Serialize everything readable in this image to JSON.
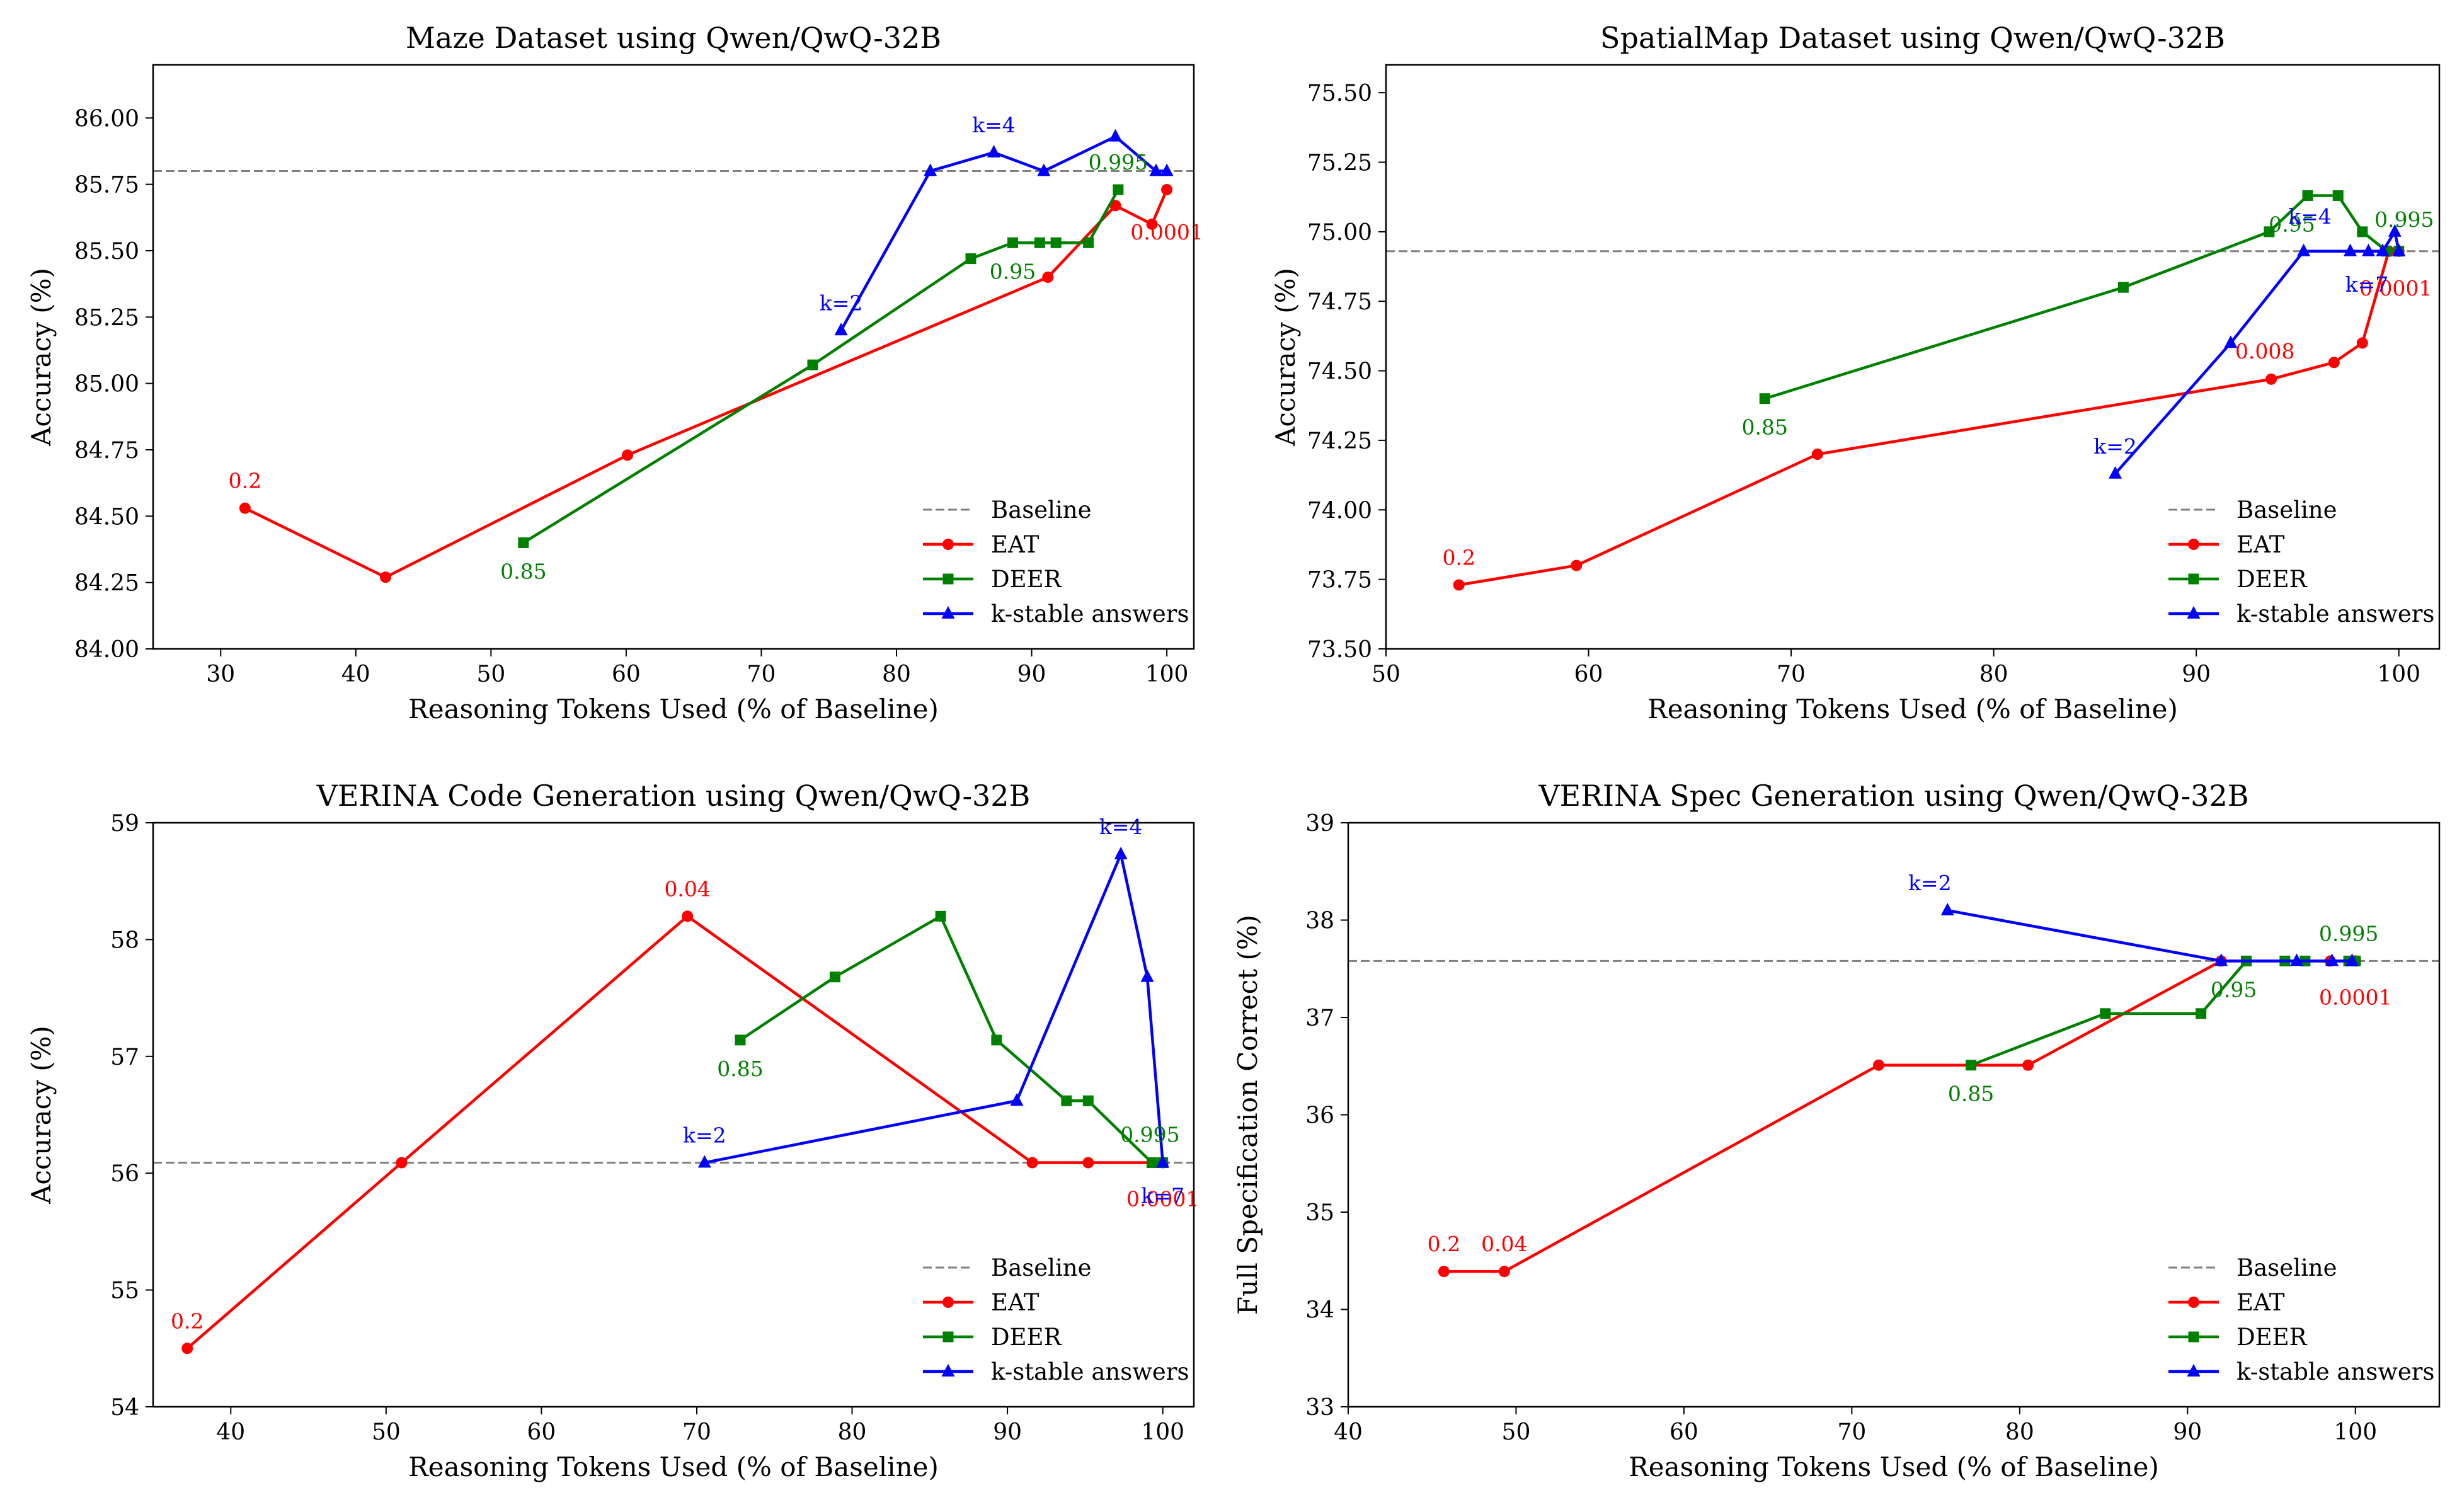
{
  "figure": {
    "model": "Qwen/QwQ-32B"
  },
  "colors": {
    "EAT": "#ff0000",
    "DEER": "#008000",
    "k-stable answers": "#0000ff",
    "Baseline": "#808080"
  },
  "chart_data": [
    {
      "type": "line",
      "title": "Maze Dataset using Qwen/QwQ-32B",
      "xlabel": "Reasoning Tokens Used (% of Baseline)",
      "ylabel": "Accuracy (%)",
      "xlim": [
        25,
        102
      ],
      "ylim": [
        84.0,
        86.2
      ],
      "xticks": [
        30,
        40,
        50,
        60,
        70,
        80,
        90,
        100
      ],
      "yticks": [
        84.0,
        84.25,
        84.5,
        84.75,
        85.0,
        85.25,
        85.5,
        85.75,
        86.0
      ],
      "ytick_decimals": 2,
      "baseline": 85.8,
      "legend_position": "bottom-right",
      "legend": [
        "Baseline",
        "EAT",
        "DEER",
        "k-stable answers"
      ],
      "series": [
        {
          "name": "EAT",
          "marker": "circle",
          "x": [
            31.8,
            42.2,
            60.1,
            91.2,
            96.2,
            98.9,
            100
          ],
          "y": [
            84.53,
            84.27,
            84.73,
            85.4,
            85.67,
            85.6,
            85.73
          ]
        },
        {
          "name": "DEER",
          "marker": "square",
          "x": [
            52.4,
            73.8,
            85.5,
            88.6,
            90.6,
            91.8,
            94.2,
            96.4
          ],
          "y": [
            84.4,
            85.07,
            85.47,
            85.53,
            85.53,
            85.53,
            85.53,
            85.73
          ]
        },
        {
          "name": "k-stable answers",
          "marker": "triangle",
          "x": [
            75.9,
            82.5,
            87.2,
            90.9,
            96.2,
            99.2,
            100
          ],
          "y": [
            85.2,
            85.8,
            85.87,
            85.8,
            85.93,
            85.8,
            85.8
          ]
        }
      ],
      "annotations": [
        {
          "text": "0.2",
          "x": 31.8,
          "y": 84.53,
          "dx": 0,
          "dy": -44,
          "series": "EAT"
        },
        {
          "text": "0.0001",
          "x": 100,
          "y": 85.73,
          "dx": 0,
          "dy": 67,
          "series": "EAT"
        },
        {
          "text": "0.85",
          "x": 52.4,
          "y": 84.4,
          "dx": 0,
          "dy": 45,
          "series": "DEER"
        },
        {
          "text": "0.95",
          "x": 88.6,
          "y": 85.53,
          "dx": 0,
          "dy": 45,
          "series": "DEER"
        },
        {
          "text": "0.995",
          "x": 96.4,
          "y": 85.73,
          "dx": 0,
          "dy": -44,
          "series": "DEER"
        },
        {
          "text": "k=2",
          "x": 75.9,
          "y": 85.2,
          "dx": 0,
          "dy": -44,
          "series": "k-stable answers"
        },
        {
          "text": "k=4",
          "x": 87.2,
          "y": 85.87,
          "dx": 0,
          "dy": -44,
          "series": "k-stable answers"
        }
      ]
    },
    {
      "type": "line",
      "title": "SpatialMap Dataset using Qwen/QwQ-32B",
      "xlabel": "Reasoning Tokens Used (% of Baseline)",
      "ylabel": "Accuracy (%)",
      "xlim": [
        50,
        102
      ],
      "ylim": [
        73.5,
        75.6
      ],
      "xticks": [
        50,
        60,
        70,
        80,
        90,
        100
      ],
      "yticks": [
        73.5,
        73.75,
        74.0,
        74.25,
        74.5,
        74.75,
        75.0,
        75.25,
        75.5
      ],
      "ytick_decimals": 2,
      "baseline": 74.93,
      "legend_position": "bottom-right",
      "legend": [
        "Baseline",
        "EAT",
        "DEER",
        "k-stable answers"
      ],
      "series": [
        {
          "name": "EAT",
          "marker": "circle",
          "x": [
            53.6,
            59.4,
            71.3,
            93.7,
            96.8,
            98.2,
            99.5,
            100
          ],
          "y": [
            73.73,
            73.8,
            74.2,
            74.47,
            74.53,
            74.6,
            74.93,
            74.93
          ]
        },
        {
          "name": "DEER",
          "marker": "square",
          "x": [
            68.7,
            86.4,
            93.6,
            95.5,
            97.0,
            98.2,
            99.4,
            100
          ],
          "y": [
            74.4,
            74.8,
            75.0,
            75.13,
            75.13,
            75.0,
            74.93,
            74.93
          ]
        },
        {
          "name": "k-stable answers",
          "marker": "triangle",
          "x": [
            86.0,
            91.7,
            95.3,
            97.6,
            98.5,
            99.2,
            99.8,
            100
          ],
          "y": [
            74.13,
            74.6,
            74.93,
            74.93,
            74.93,
            74.93,
            75.0,
            74.93
          ]
        }
      ],
      "annotations": [
        {
          "text": "0.2",
          "x": 53.6,
          "y": 73.73,
          "dx": 0,
          "dy": -44,
          "series": "EAT"
        },
        {
          "text": "0.008",
          "x": 93.7,
          "y": 74.47,
          "dx": -10,
          "dy": -45,
          "series": "EAT"
        },
        {
          "text": "0.0001",
          "x": 100,
          "y": 74.93,
          "dx": -5,
          "dy": 58,
          "series": "EAT"
        },
        {
          "text": "0.85",
          "x": 68.7,
          "y": 74.4,
          "dx": 0,
          "dy": 45,
          "series": "DEER"
        },
        {
          "text": "0.95",
          "x": 95.5,
          "y": 75.13,
          "dx": -25,
          "dy": 45,
          "series": "DEER"
        },
        {
          "text": "0.995",
          "x": 99.8,
          "y": 75.0,
          "dx": 15,
          "dy": -20,
          "series": "DEER"
        },
        {
          "text": "k=2",
          "x": 86.0,
          "y": 74.13,
          "dx": 0,
          "dy": -44,
          "series": "k-stable answers"
        },
        {
          "text": "k=4",
          "x": 95.3,
          "y": 74.93,
          "dx": 10,
          "dy": -56,
          "series": "k-stable answers"
        },
        {
          "text": "k=7",
          "x": 99.2,
          "y": 74.93,
          "dx": -25,
          "dy": 52,
          "series": "k-stable answers"
        }
      ]
    },
    {
      "type": "line",
      "title": "VERINA Code Generation using Qwen/QwQ-32B",
      "xlabel": "Reasoning Tokens Used (% of Baseline)",
      "ylabel": "Accuracy (%)",
      "xlim": [
        35,
        102
      ],
      "ylim": [
        54,
        59
      ],
      "xticks": [
        40,
        50,
        60,
        70,
        80,
        90,
        100
      ],
      "yticks": [
        54,
        55,
        56,
        57,
        58,
        59
      ],
      "ytick_decimals": 0,
      "baseline": 56.09,
      "legend_position": "bottom-right",
      "legend": [
        "Baseline",
        "EAT",
        "DEER",
        "k-stable answers"
      ],
      "series": [
        {
          "name": "EAT",
          "marker": "circle",
          "x": [
            37.2,
            51.0,
            69.4,
            91.6,
            95.2,
            100
          ],
          "y": [
            54.5,
            56.09,
            58.2,
            56.09,
            56.09,
            56.09
          ]
        },
        {
          "name": "DEER",
          "marker": "square",
          "x": [
            72.8,
            78.9,
            85.7,
            89.3,
            93.8,
            95.2,
            99.3,
            100
          ],
          "y": [
            57.14,
            57.68,
            58.2,
            57.14,
            56.62,
            56.62,
            56.09,
            56.09
          ]
        },
        {
          "name": "k-stable answers",
          "marker": "triangle",
          "x": [
            70.5,
            90.6,
            97.3,
            99.0,
            100
          ],
          "y": [
            56.09,
            56.62,
            58.73,
            57.68,
            56.09
          ]
        }
      ],
      "annotations": [
        {
          "text": "0.2",
          "x": 37.2,
          "y": 54.5,
          "dx": 0,
          "dy": -44,
          "series": "EAT"
        },
        {
          "text": "0.04",
          "x": 69.4,
          "y": 58.2,
          "dx": 0,
          "dy": -44,
          "series": "EAT"
        },
        {
          "text": "0.0001",
          "x": 100,
          "y": 56.09,
          "dx": 0,
          "dy": 57,
          "series": "EAT"
        },
        {
          "text": "0.85",
          "x": 72.8,
          "y": 57.14,
          "dx": 0,
          "dy": 45,
          "series": "DEER"
        },
        {
          "text": "0.995",
          "x": 99.3,
          "y": 56.09,
          "dx": -3,
          "dy": -45,
          "series": "DEER"
        },
        {
          "text": "k=2",
          "x": 70.5,
          "y": 56.09,
          "dx": 0,
          "dy": -44,
          "series": "k-stable answers"
        },
        {
          "text": "k=4",
          "x": 97.3,
          "y": 58.73,
          "dx": 0,
          "dy": -44,
          "series": "k-stable answers"
        },
        {
          "text": "k=7",
          "x": 100,
          "y": 56.09,
          "dx": 0,
          "dy": 52,
          "series": "k-stable answers"
        }
      ]
    },
    {
      "type": "line",
      "title": "VERINA Spec Generation using Qwen/QwQ-32B",
      "xlabel": "Reasoning Tokens Used (% of Baseline)",
      "ylabel": "Full Specification Correct (%)",
      "xlim": [
        40,
        105
      ],
      "ylim": [
        33,
        39
      ],
      "xticks": [
        40,
        50,
        60,
        70,
        80,
        90,
        100
      ],
      "yticks": [
        33,
        34,
        35,
        36,
        37,
        38,
        39
      ],
      "ytick_decimals": 0,
      "baseline": 37.58,
      "legend_position": "bottom-right",
      "legend": [
        "Baseline",
        "EAT",
        "DEER",
        "k-stable answers"
      ],
      "series": [
        {
          "name": "EAT",
          "marker": "circle",
          "x": [
            45.7,
            49.3,
            71.6,
            80.5,
            92.0,
            98.5,
            100
          ],
          "y": [
            34.39,
            34.39,
            36.51,
            36.51,
            37.58,
            37.58,
            37.58
          ]
        },
        {
          "name": "DEER",
          "marker": "square",
          "x": [
            77.1,
            85.1,
            90.8,
            93.5,
            95.8,
            97.0,
            99.6,
            100
          ],
          "y": [
            36.51,
            37.04,
            37.04,
            37.58,
            37.58,
            37.58,
            37.58,
            37.58
          ]
        },
        {
          "name": "k-stable answers",
          "marker": "triangle",
          "x": [
            75.7,
            92.0,
            96.5,
            98.6,
            99.8
          ],
          "y": [
            38.1,
            37.58,
            37.58,
            37.58,
            37.58
          ]
        }
      ],
      "annotations": [
        {
          "text": "0.2",
          "x": 45.7,
          "y": 34.39,
          "dx": 0,
          "dy": -44,
          "series": "EAT"
        },
        {
          "text": "0.04",
          "x": 49.3,
          "y": 34.39,
          "dx": 0,
          "dy": -44,
          "series": "EAT"
        },
        {
          "text": "0.0001",
          "x": 100,
          "y": 37.58,
          "dx": 0,
          "dy": 57,
          "series": "EAT"
        },
        {
          "text": "0.85",
          "x": 77.1,
          "y": 36.51,
          "dx": 0,
          "dy": 45,
          "series": "DEER"
        },
        {
          "text": "0.95",
          "x": 92.0,
          "y": 37.58,
          "dx": 20,
          "dy": 45,
          "series": "DEER"
        },
        {
          "text": "0.995",
          "x": 99.6,
          "y": 37.58,
          "dx": 0,
          "dy": -44,
          "series": "DEER"
        },
        {
          "text": "k=2",
          "x": 75.7,
          "y": 38.1,
          "dx": -28,
          "dy": -44,
          "series": "k-stable answers"
        }
      ]
    }
  ]
}
